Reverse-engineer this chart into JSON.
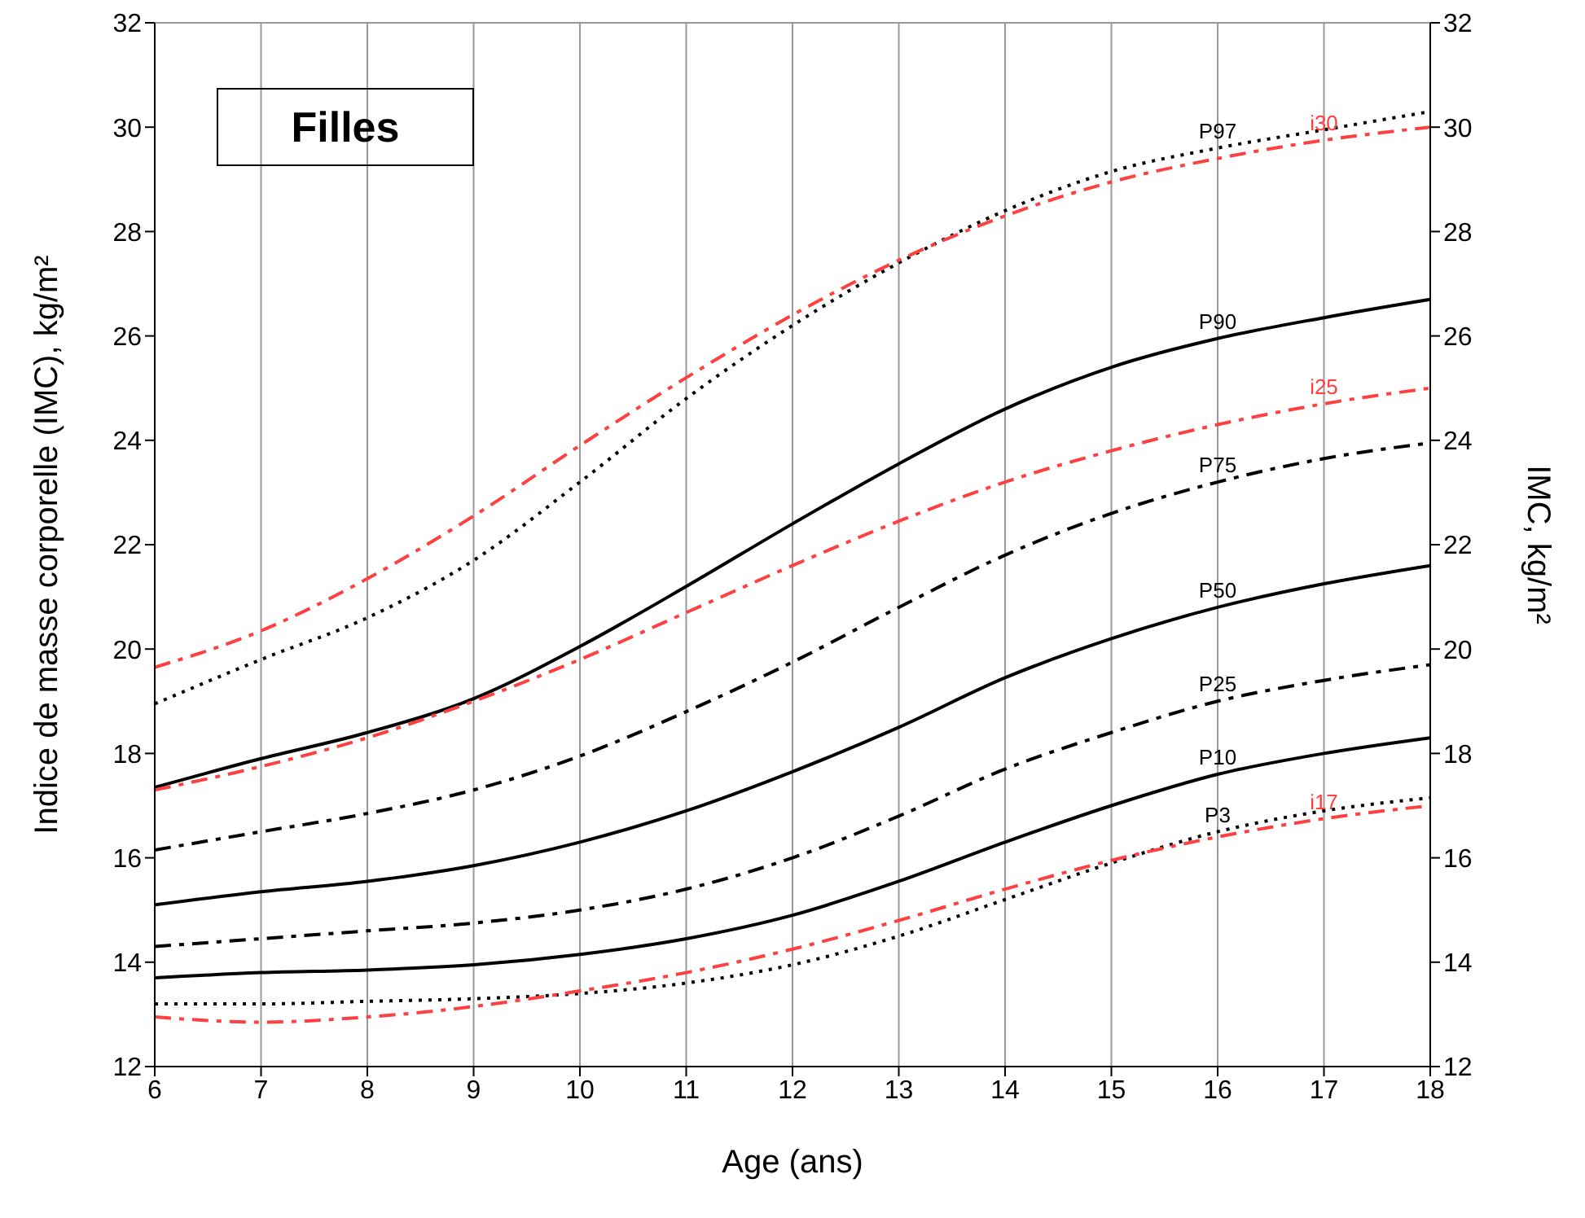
{
  "chart_data": {
    "type": "line",
    "title": "Filles",
    "xlabel": "Age (ans)",
    "ylabel": "Indice de masse corporelle (IMC), kg/m²",
    "y2label": "IMC, kg/m²",
    "x": [
      6,
      7,
      8,
      9,
      10,
      11,
      12,
      13,
      14,
      15,
      16,
      17,
      18
    ],
    "xlim": [
      6,
      18
    ],
    "xticks": [
      6,
      7,
      8,
      9,
      10,
      11,
      12,
      13,
      14,
      15,
      16,
      17,
      18
    ],
    "ylim": [
      12,
      32
    ],
    "yticks": [
      12,
      14,
      16,
      18,
      20,
      22,
      24,
      26,
      28,
      30,
      32
    ],
    "y2lim": [
      12,
      32
    ],
    "y2ticks": [
      12,
      14,
      16,
      18,
      20,
      22,
      24,
      26,
      28,
      30,
      32
    ],
    "grid": true,
    "legend": false,
    "marker": "none",
    "series": [
      {
        "name": "P97",
        "color": "#000000",
        "line_style": "dotted",
        "values": [
          18.95,
          19.8,
          20.6,
          21.7,
          23.2,
          24.8,
          26.2,
          27.4,
          28.4,
          29.15,
          29.6,
          29.95,
          30.3
        ]
      },
      {
        "name": "i30",
        "color": "#ff4040",
        "line_style": "dashed",
        "values": [
          19.65,
          20.35,
          21.35,
          22.55,
          23.9,
          25.2,
          26.4,
          27.45,
          28.3,
          28.95,
          29.4,
          29.75,
          30.0
        ]
      },
      {
        "name": "P90",
        "color": "#000000",
        "line_style": "solid",
        "values": [
          17.35,
          17.9,
          18.4,
          19.05,
          20.05,
          21.2,
          22.4,
          23.55,
          24.6,
          25.4,
          25.95,
          26.35,
          26.7
        ]
      },
      {
        "name": "i25",
        "color": "#ff4040",
        "line_style": "dashed",
        "values": [
          17.3,
          17.75,
          18.3,
          19.0,
          19.8,
          20.7,
          21.6,
          22.45,
          23.2,
          23.8,
          24.3,
          24.7,
          25.0
        ]
      },
      {
        "name": "P75",
        "color": "#000000",
        "line_style": "dashed",
        "values": [
          16.15,
          16.5,
          16.85,
          17.3,
          17.95,
          18.8,
          19.75,
          20.8,
          21.8,
          22.6,
          23.2,
          23.65,
          23.95
        ]
      },
      {
        "name": "P50",
        "color": "#000000",
        "line_style": "solid",
        "values": [
          15.1,
          15.35,
          15.55,
          15.85,
          16.3,
          16.9,
          17.65,
          18.5,
          19.45,
          20.2,
          20.8,
          21.25,
          21.6
        ]
      },
      {
        "name": "P25",
        "color": "#000000",
        "line_style": "dashed",
        "values": [
          14.3,
          14.45,
          14.6,
          14.75,
          15.0,
          15.4,
          16.0,
          16.8,
          17.7,
          18.4,
          19.0,
          19.4,
          19.7
        ]
      },
      {
        "name": "P10",
        "color": "#000000",
        "line_style": "solid",
        "values": [
          13.7,
          13.8,
          13.85,
          13.95,
          14.15,
          14.45,
          14.9,
          15.55,
          16.3,
          17.0,
          17.6,
          18.0,
          18.3
        ]
      },
      {
        "name": "P3",
        "color": "#000000",
        "line_style": "dotted",
        "values": [
          13.2,
          13.2,
          13.25,
          13.3,
          13.4,
          13.6,
          13.95,
          14.5,
          15.2,
          15.9,
          16.5,
          16.9,
          17.15
        ]
      },
      {
        "name": "i17",
        "color": "#ff4040",
        "line_style": "dashed",
        "values": [
          12.95,
          12.85,
          12.95,
          13.15,
          13.45,
          13.8,
          14.25,
          14.8,
          15.4,
          15.95,
          16.4,
          16.75,
          17.0
        ]
      }
    ]
  }
}
